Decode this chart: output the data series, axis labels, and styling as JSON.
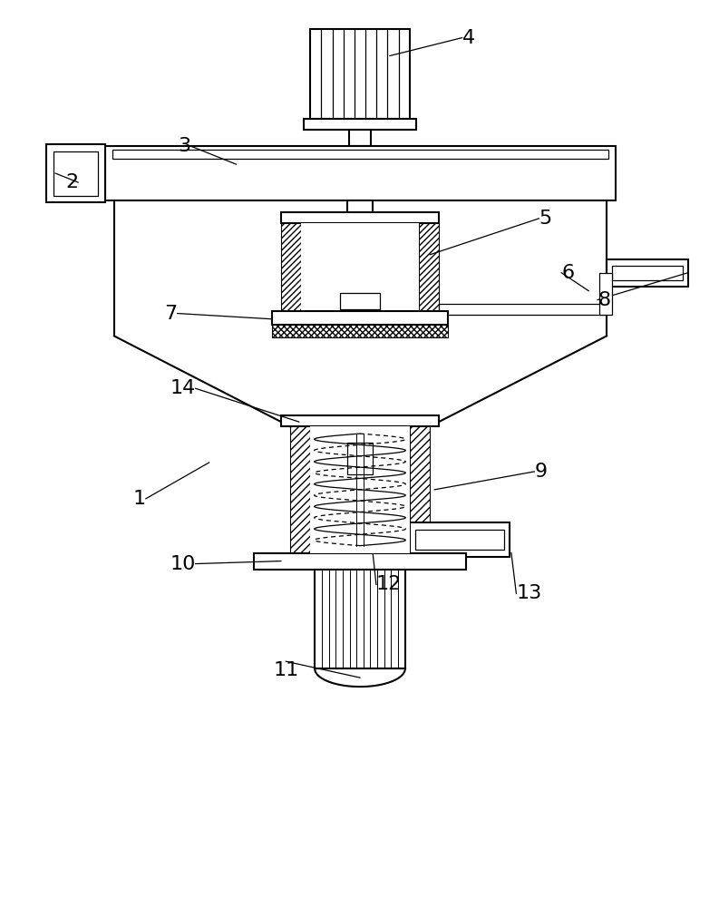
{
  "bg_color": "#ffffff",
  "line_color": "#000000",
  "fig_width": 7.93,
  "fig_height": 10.0
}
